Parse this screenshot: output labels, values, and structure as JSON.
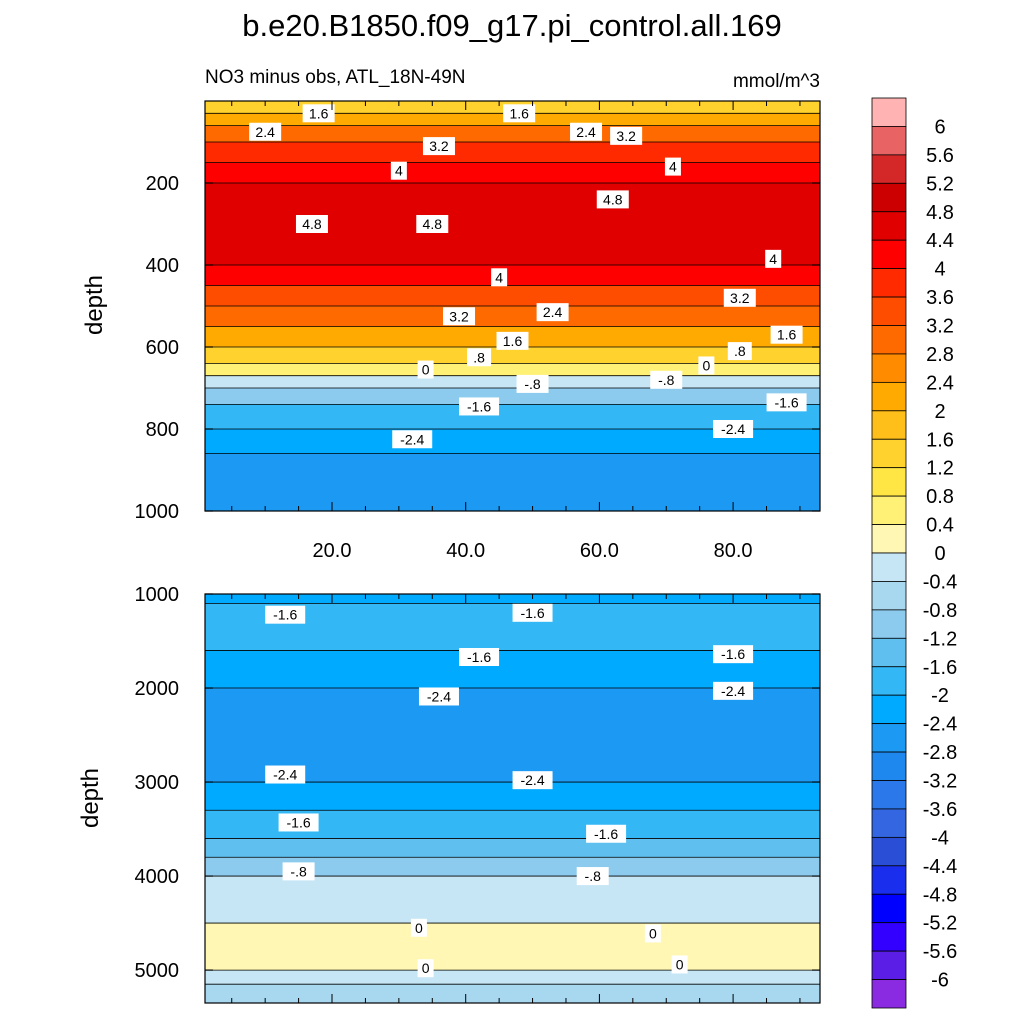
{
  "chart_data": [
    {
      "type": "contour",
      "title": "b.e20.B1850.f09_g17.pi_control.all.169",
      "subtitle_left": "NO3 minus obs, ATL_18N-49N",
      "subtitle_right": "mmol/m^3",
      "ylabel": "depth",
      "xlabel": "",
      "xlim": [
        1,
        93
      ],
      "ylim": [
        1000,
        0
      ],
      "x_ticks": [
        "20.0",
        "40.0",
        "60.0",
        "80.0"
      ],
      "y_ticks": [
        "200",
        "400",
        "600",
        "800",
        "1000"
      ],
      "bands": [
        {
          "from": 0,
          "to": 30,
          "value": 1.4
        },
        {
          "from": 30,
          "to": 60,
          "value": 2.2
        },
        {
          "from": 60,
          "to": 100,
          "value": 2.9
        },
        {
          "from": 100,
          "to": 150,
          "value": 3.7
        },
        {
          "from": 150,
          "to": 200,
          "value": 4.3
        },
        {
          "from": 200,
          "to": 400,
          "value": 4.6
        },
        {
          "from": 400,
          "to": 450,
          "value": 4.1
        },
        {
          "from": 450,
          "to": 500,
          "value": 3.5
        },
        {
          "from": 500,
          "to": 550,
          "value": 2.9
        },
        {
          "from": 550,
          "to": 600,
          "value": 2.1
        },
        {
          "from": 600,
          "to": 640,
          "value": 1.3
        },
        {
          "from": 640,
          "to": 670,
          "value": 0.5
        },
        {
          "from": 670,
          "to": 700,
          "value": -0.3
        },
        {
          "from": 700,
          "to": 740,
          "value": -0.9
        },
        {
          "from": 740,
          "to": 800,
          "value": -1.7
        },
        {
          "from": 800,
          "to": 860,
          "value": -2.3
        },
        {
          "from": 860,
          "to": 1000,
          "value": -2.7
        }
      ],
      "contour_labels": [
        {
          "x": 18,
          "y": 30,
          "text": "1.6"
        },
        {
          "x": 10,
          "y": 75,
          "text": "2.4"
        },
        {
          "x": 48,
          "y": 30,
          "text": "1.6"
        },
        {
          "x": 58,
          "y": 75,
          "text": "2.4"
        },
        {
          "x": 64,
          "y": 85,
          "text": "3.2"
        },
        {
          "x": 36,
          "y": 110,
          "text": "3.2"
        },
        {
          "x": 30,
          "y": 170,
          "text": "4"
        },
        {
          "x": 71,
          "y": 160,
          "text": "4"
        },
        {
          "x": 62,
          "y": 240,
          "text": "4.8"
        },
        {
          "x": 17,
          "y": 300,
          "text": "4.8"
        },
        {
          "x": 35,
          "y": 300,
          "text": "4.8"
        },
        {
          "x": 86,
          "y": 385,
          "text": "4"
        },
        {
          "x": 45,
          "y": 430,
          "text": "4"
        },
        {
          "x": 81,
          "y": 480,
          "text": "3.2"
        },
        {
          "x": 39,
          "y": 525,
          "text": "3.2"
        },
        {
          "x": 53,
          "y": 515,
          "text": "2.4"
        },
        {
          "x": 88,
          "y": 570,
          "text": "1.6"
        },
        {
          "x": 47,
          "y": 585,
          "text": "1.6"
        },
        {
          "x": 81,
          "y": 610,
          "text": ".8"
        },
        {
          "x": 42,
          "y": 625,
          "text": ".8"
        },
        {
          "x": 34,
          "y": 655,
          "text": "0"
        },
        {
          "x": 76,
          "y": 645,
          "text": "0"
        },
        {
          "x": 70,
          "y": 680,
          "text": "-.8"
        },
        {
          "x": 50,
          "y": 690,
          "text": "-.8"
        },
        {
          "x": 88,
          "y": 735,
          "text": "-1.6"
        },
        {
          "x": 42,
          "y": 745,
          "text": "-1.6"
        },
        {
          "x": 80,
          "y": 800,
          "text": "-2.4"
        },
        {
          "x": 32,
          "y": 825,
          "text": "-2.4"
        }
      ]
    },
    {
      "type": "contour",
      "ylabel": "depth",
      "xlim": [
        1,
        93
      ],
      "ylim": [
        5350,
        1000
      ],
      "y_ticks": [
        "1000",
        "2000",
        "3000",
        "4000",
        "5000"
      ],
      "bands": [
        {
          "from": 1000,
          "to": 1100,
          "value": -2.4
        },
        {
          "from": 1100,
          "to": 1600,
          "value": -1.7
        },
        {
          "from": 1600,
          "to": 2000,
          "value": -2.1
        },
        {
          "from": 2000,
          "to": 3000,
          "value": -2.6
        },
        {
          "from": 3000,
          "to": 3300,
          "value": -2.1
        },
        {
          "from": 3300,
          "to": 3600,
          "value": -1.7
        },
        {
          "from": 3600,
          "to": 3800,
          "value": -1.3
        },
        {
          "from": 3800,
          "to": 4000,
          "value": -0.9
        },
        {
          "from": 4000,
          "to": 4500,
          "value": -0.3
        },
        {
          "from": 4500,
          "to": 5000,
          "value": 0.3
        },
        {
          "from": 5000,
          "to": 5150,
          "value": -0.3
        },
        {
          "from": 5150,
          "to": 5350,
          "value": -0.6
        }
      ],
      "contour_labels": [
        {
          "x": 13,
          "y": 1220,
          "text": "-1.6"
        },
        {
          "x": 50,
          "y": 1200,
          "text": "-1.6"
        },
        {
          "x": 42,
          "y": 1670,
          "text": "-1.6"
        },
        {
          "x": 80,
          "y": 1640,
          "text": "-1.6"
        },
        {
          "x": 36,
          "y": 2090,
          "text": "-2.4"
        },
        {
          "x": 80,
          "y": 2030,
          "text": "-2.4"
        },
        {
          "x": 13,
          "y": 2920,
          "text": "-2.4"
        },
        {
          "x": 50,
          "y": 2980,
          "text": "-2.4"
        },
        {
          "x": 15,
          "y": 3430,
          "text": "-1.6"
        },
        {
          "x": 61,
          "y": 3550,
          "text": "-1.6"
        },
        {
          "x": 15,
          "y": 3950,
          "text": "-.8"
        },
        {
          "x": 59,
          "y": 4000,
          "text": "-.8"
        },
        {
          "x": 33,
          "y": 4550,
          "text": "0"
        },
        {
          "x": 68,
          "y": 4610,
          "text": "0"
        },
        {
          "x": 34,
          "y": 4980,
          "text": "0"
        },
        {
          "x": 72,
          "y": 4940,
          "text": "0"
        }
      ]
    }
  ],
  "colorbar": {
    "labels": [
      "6",
      "5.6",
      "5.2",
      "4.8",
      "4.4",
      "4",
      "3.6",
      "3.2",
      "2.8",
      "2.4",
      "2",
      "1.6",
      "1.2",
      "0.8",
      "0.4",
      "0",
      "-0.4",
      "-0.8",
      "-1.2",
      "-1.6",
      "-2",
      "-2.4",
      "-2.8",
      "-3.2",
      "-3.6",
      "-4",
      "-4.4",
      "-4.8",
      "-5.2",
      "-5.6",
      "-6"
    ],
    "colors": [
      "#ffb3b3",
      "#e86363",
      "#d42828",
      "#cc0000",
      "#e00000",
      "#ff0000",
      "#ff2a00",
      "#ff4d00",
      "#ff6a00",
      "#ff8c00",
      "#ffaa00",
      "#ffbf1a",
      "#ffd22e",
      "#ffe645",
      "#fff176",
      "#fff7b3",
      "#c6e6f5",
      "#a8d8f0",
      "#8ccbee",
      "#5fc0f0",
      "#33b8f5",
      "#00aaff",
      "#1c99f2",
      "#1f88ee",
      "#2a78ea",
      "#3366e0",
      "#2a4fd6",
      "#1a2fee",
      "#0000ff",
      "#3300ff",
      "#5a1ee6",
      "#8a2be2"
    ]
  }
}
